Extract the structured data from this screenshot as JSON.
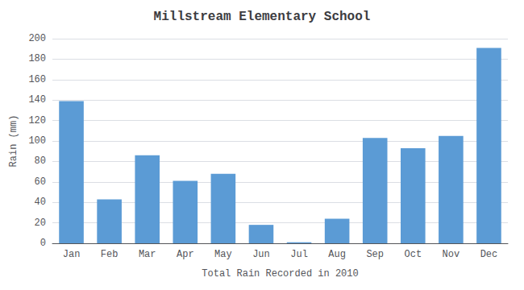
{
  "chart_data": {
    "type": "bar",
    "title": "Millstream Elementary School",
    "xlabel": "Total Rain Recorded in 2010",
    "ylabel": "Rain (mm)",
    "categories": [
      "Jan",
      "Feb",
      "Mar",
      "Apr",
      "May",
      "Jun",
      "Jul",
      "Aug",
      "Sep",
      "Oct",
      "Nov",
      "Dec"
    ],
    "values": [
      139,
      43,
      86,
      61,
      68,
      18,
      1,
      24,
      103,
      93,
      105,
      191
    ],
    "color": "#5B9BD5",
    "ylim": [
      0,
      200
    ],
    "yticks": [
      0,
      20,
      40,
      60,
      80,
      100,
      120,
      140,
      160,
      180,
      200
    ],
    "grid": true
  }
}
